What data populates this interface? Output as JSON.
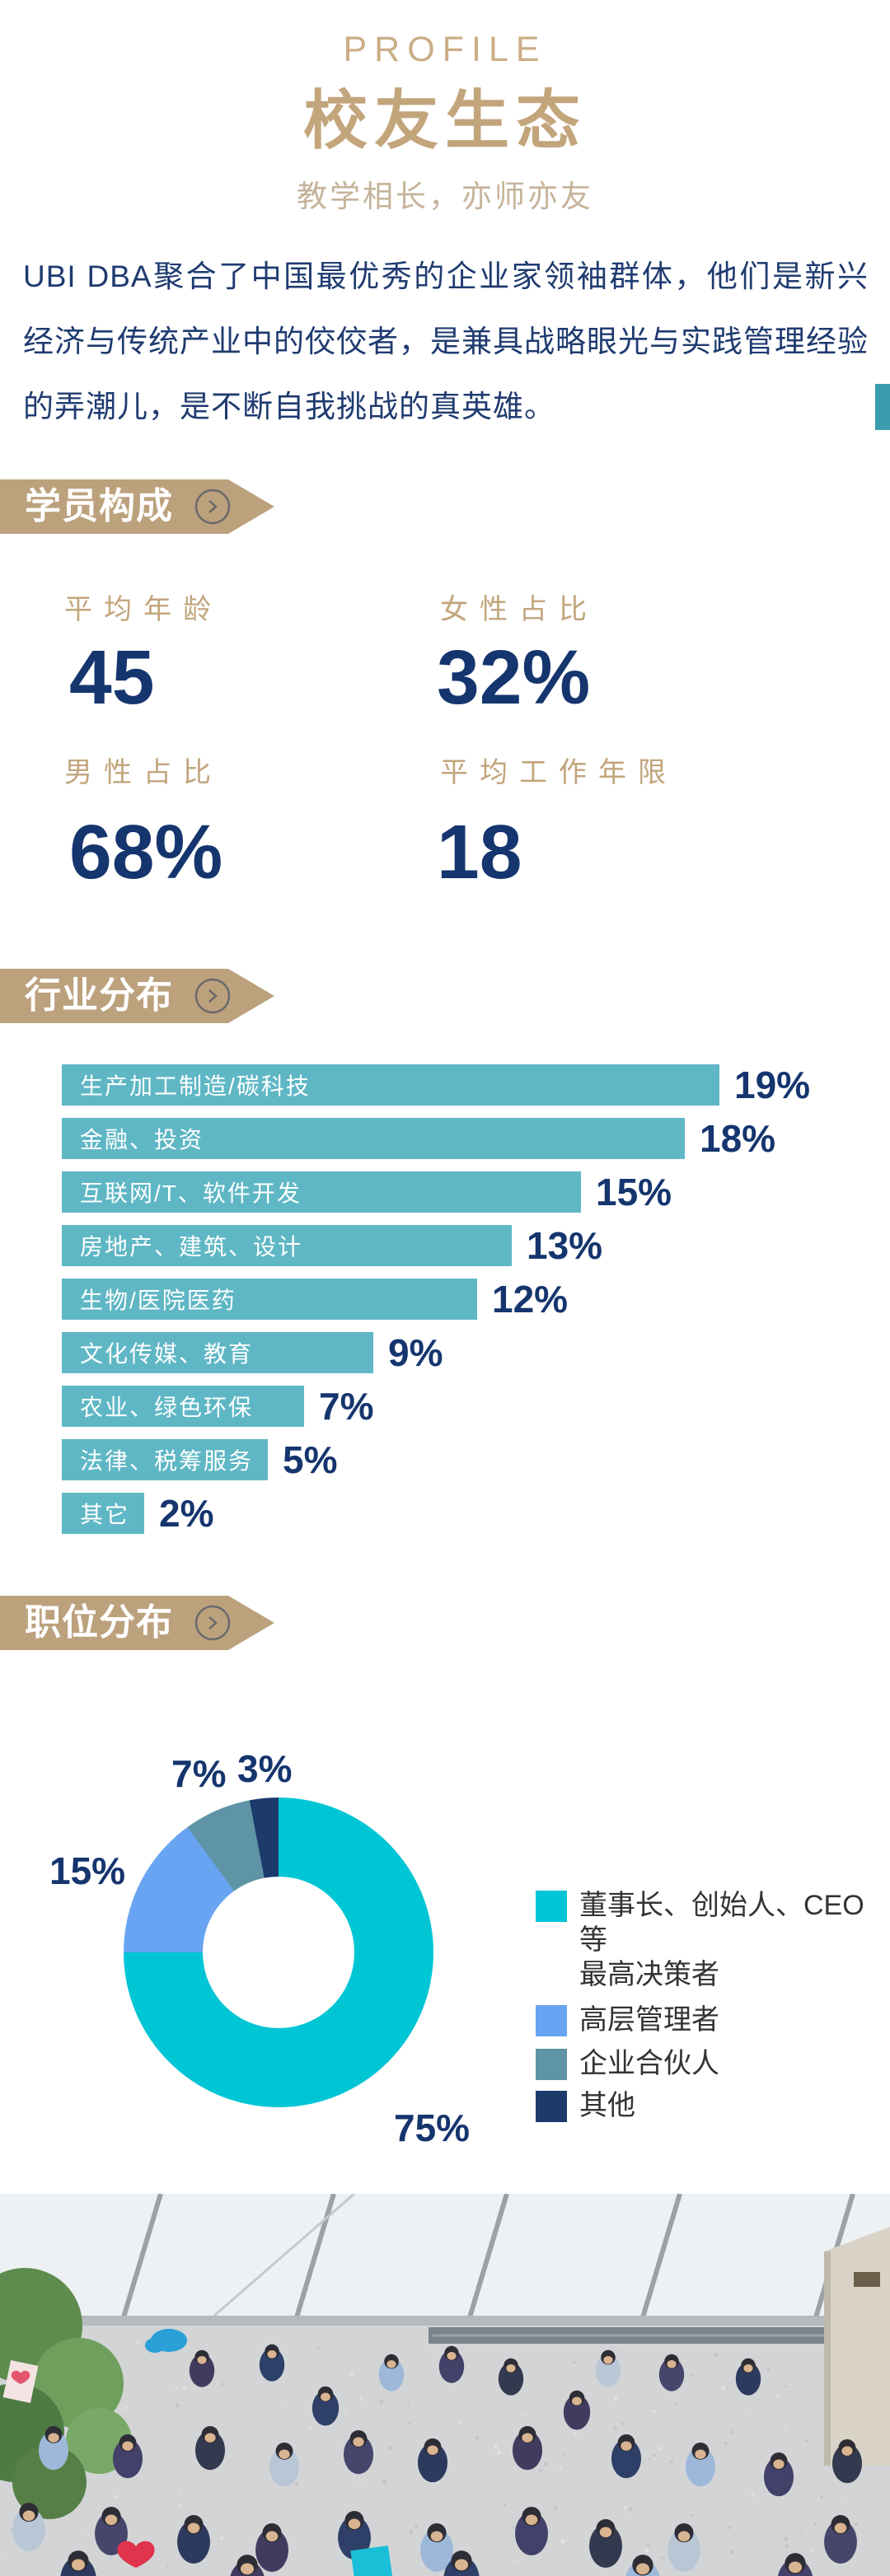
{
  "header": {
    "eyebrow": "PROFILE",
    "title": "校友生态",
    "subtitle": "教学相长，亦师亦友"
  },
  "intro": {
    "text": "UBI DBA聚合了中国最优秀的企业家领袖群体，他们是新兴经济与传统产业中的佼佼者，是兼具战略眼光与实践管理经验的弄潮儿，是不断自我挑战的真英雄。"
  },
  "section_headers": {
    "students": "学员构成",
    "industry": "行业分布",
    "position": "职位分布"
  },
  "stats": {
    "items": [
      {
        "label": "平均年龄",
        "value": "45"
      },
      {
        "label": "女性占比",
        "value": "32%"
      },
      {
        "label": "男性占比",
        "value": "68%"
      },
      {
        "label": "平均工作年限",
        "value": "18"
      }
    ]
  },
  "chart_data": [
    {
      "type": "bar",
      "orientation": "horizontal",
      "title": "行业分布",
      "categories": [
        "生产加工制造/碳科技",
        "金融、投资",
        "互联网/T、软件开发",
        "房地产、建筑、设计",
        "生物/医院医药",
        "文化传媒、教育",
        "农业、绿色环保",
        "法律、税筹服务",
        "其它"
      ],
      "values": [
        19,
        18,
        15,
        13,
        12,
        9,
        7,
        5,
        2
      ],
      "value_labels": [
        "19%",
        "18%",
        "15%",
        "13%",
        "12%",
        "9%",
        "7%",
        "5%",
        "2%"
      ],
      "unit": "%",
      "xlim": [
        0,
        19
      ],
      "gridlines": false,
      "bar_color": "#5FB7C5",
      "category_text_color": "#FFFFFF",
      "value_text_color": "#15356E"
    },
    {
      "type": "pie",
      "subtype": "donut",
      "title": "职位分布",
      "direction": "clockwise",
      "start_angle_deg": 0,
      "inner_radius_ratio": 0.49,
      "slices": [
        {
          "label": "董事长、创始人、CEO等最高决策者",
          "value": 75,
          "display": "75%",
          "color": "#00C5D5"
        },
        {
          "label": "高层管理者",
          "value": 15,
          "display": "15%",
          "color": "#69A4F2"
        },
        {
          "label": "企业合伙人",
          "value": 7,
          "display": "7%",
          "color": "#5E94A5"
        },
        {
          "label": "其他",
          "value": 3,
          "display": "3%",
          "color": "#1C3A6B"
        }
      ],
      "legend": {
        "position": "right",
        "entries_lines": [
          [
            "董事长、创始人、CEO等",
            "最高决策者"
          ],
          [
            "高层管理者"
          ],
          [
            "企业合伙人"
          ],
          [
            "其他"
          ]
        ]
      }
    }
  ],
  "colors": {
    "gold": "#C3A57C",
    "gold_light": "#CBAE86",
    "gold_subtitle": "#C6B39B",
    "gold_label": "#C2A57C",
    "ribbon": "#BCA17D",
    "navy": "#1F3B70",
    "navy_number": "#15356E",
    "bar_teal": "#5FB7C5",
    "accent_strip": "#3A9CAD",
    "legend_text": "#333333"
  },
  "photo": {
    "alt": "俯拍合影：玻璃中庭内的校友群体仰望镜头"
  }
}
